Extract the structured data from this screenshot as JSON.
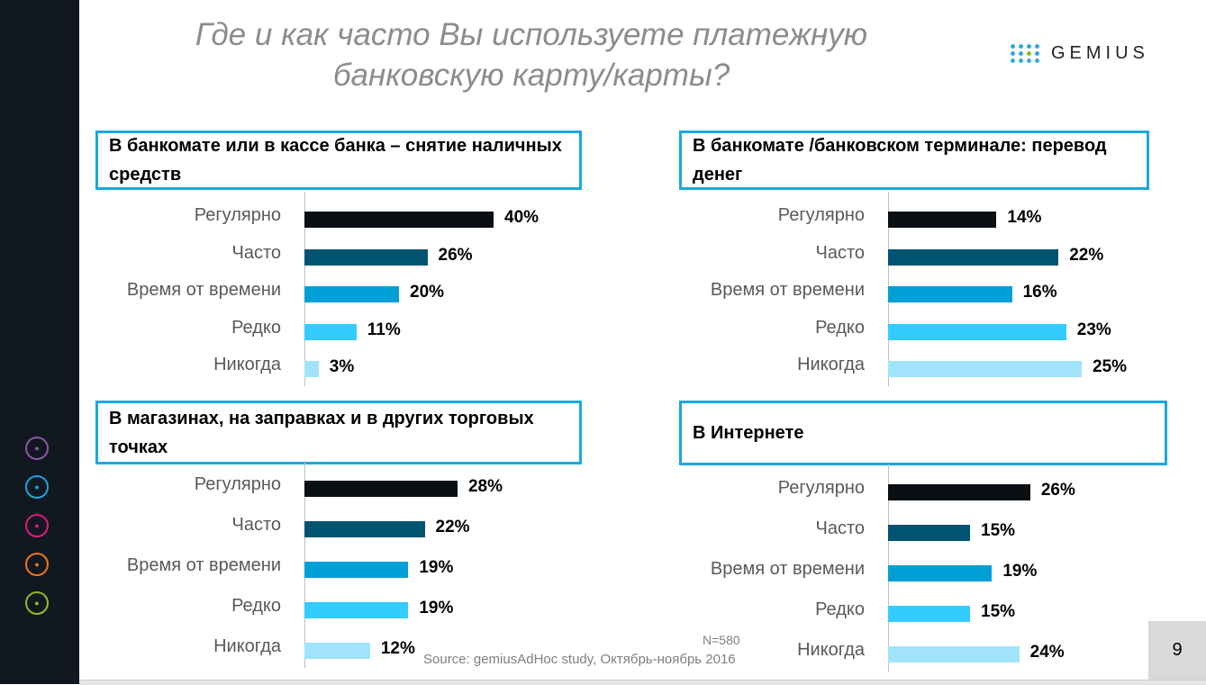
{
  "title": "Где и как часто Вы используете платежную банковскую карту/карты?",
  "logo": "GEMIUS",
  "sidebar_icons": [
    {
      "name": "people-icon",
      "color": "#8e56a8"
    },
    {
      "name": "lightbulb-icon",
      "color": "#1aa6e0"
    },
    {
      "name": "cart-icon",
      "color": "#e0197f"
    },
    {
      "name": "wrench-icon",
      "color": "#f07818"
    },
    {
      "name": "book-icon",
      "color": "#8cbf26"
    }
  ],
  "colors": [
    "#0a0f14",
    "#005472",
    "#009fd6",
    "#33ccff",
    "#a1e3fa"
  ],
  "chart_data": [
    {
      "type": "bar",
      "title": "В банкомате или в кассе банка – снятие наличных средств",
      "categories": [
        "Регулярно",
        "Часто",
        "Время от времени",
        "Редко",
        "Никогда"
      ],
      "values": [
        40,
        26,
        20,
        11,
        3
      ],
      "labels": [
        "40%",
        "26%",
        "20%",
        "11%",
        "3%"
      ]
    },
    {
      "type": "bar",
      "title": "В банкомате /банковском терминале: перевод денег",
      "categories": [
        "Регулярно",
        "Часто",
        "Время от времени",
        "Редко",
        "Никогда"
      ],
      "values": [
        14,
        22,
        16,
        23,
        25
      ],
      "labels": [
        "14%",
        "22%",
        "16%",
        "23%",
        "25%"
      ]
    },
    {
      "type": "bar",
      "title": "В магазинах, на заправках и в других торговых точках",
      "categories": [
        "Регулярно",
        "Часто",
        "Время от времени",
        "Редко",
        "Никогда"
      ],
      "values": [
        28,
        22,
        19,
        19,
        12
      ],
      "labels": [
        "28%",
        "22%",
        "19%",
        "19%",
        "12%"
      ]
    },
    {
      "type": "bar",
      "title": "В Интернете",
      "categories": [
        "Регулярно",
        "Часто",
        "Время от времени",
        "Редко",
        "Никогда"
      ],
      "values": [
        26,
        15,
        19,
        15,
        24
      ],
      "labels": [
        "26%",
        "15%",
        "19%",
        "15%",
        "24%"
      ]
    }
  ],
  "footer": {
    "n": "N=580",
    "source": "Source: gemiusAdHoc study, Октябрь-ноябрь 2016",
    "page": "9"
  }
}
